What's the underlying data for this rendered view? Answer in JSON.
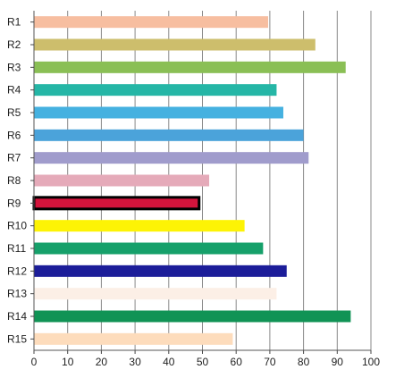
{
  "chart_data": {
    "type": "bar",
    "orientation": "horizontal",
    "categories": [
      "R1",
      "R2",
      "R3",
      "R4",
      "R5",
      "R6",
      "R7",
      "R8",
      "R9",
      "R10",
      "R11",
      "R12",
      "R13",
      "R14",
      "R15"
    ],
    "values": [
      69.5,
      83.5,
      92.5,
      72,
      74,
      80,
      81.5,
      52,
      49,
      62.5,
      68,
      75,
      72,
      94,
      59
    ],
    "colors": [
      "#F7BEA0",
      "#CDBE6C",
      "#8ABF55",
      "#25B6A6",
      "#45B1E0",
      "#4BA3DA",
      "#A09CCC",
      "#E5AAB9",
      "#D4143C",
      "#FDF305",
      "#16A06A",
      "#1C1D99",
      "#FCEFE6",
      "#109355",
      "#FDDCBC"
    ],
    "highlight": {
      "category": "R9",
      "outline_color": "#000000"
    },
    "xlim": [
      0,
      100
    ],
    "xticks": [
      0,
      10,
      20,
      30,
      40,
      50,
      60,
      70,
      80,
      90,
      100
    ],
    "grid": "vertical",
    "grid_color": "#888888",
    "title": "",
    "xlabel": "",
    "ylabel": ""
  }
}
